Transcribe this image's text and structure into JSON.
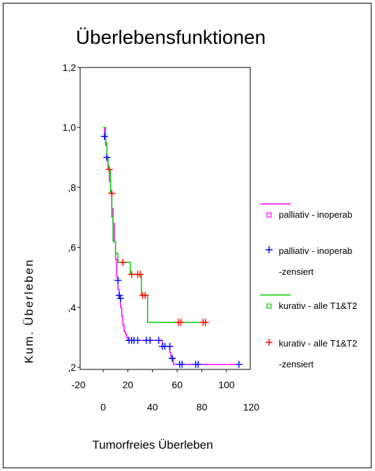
{
  "chart_data": {
    "type": "line",
    "title": "Überlebensfunktionen",
    "xlabel": "Tumorfreies Überleben",
    "ylabel": "Kum. Überleben",
    "xlim": [
      -20,
      120
    ],
    "ylim": [
      0.2,
      1.2
    ],
    "y_ticks": [
      {
        "value": 0.2,
        "label": ",2"
      },
      {
        "value": 0.4,
        "label": ",4"
      },
      {
        "value": 0.6,
        "label": ",6"
      },
      {
        "value": 0.8,
        "label": ",8"
      },
      {
        "value": 1.0,
        "label": "1,0"
      },
      {
        "value": 1.2,
        "label": "1,2"
      }
    ],
    "x_ticks_upper": [
      -20,
      20,
      60,
      100
    ],
    "x_ticks_lower": [
      0,
      40,
      80,
      120
    ],
    "grid": false,
    "legend_placement": "right",
    "colors": {
      "palliativ": "#ff00ff",
      "palliativ_censored": "#0000ff",
      "kurativ": "#00cc00",
      "kurativ_censored": "#ff0000"
    },
    "series": [
      {
        "name": "palliativ - inoperab",
        "type": "step",
        "points": [
          [
            0,
            1.0
          ],
          [
            1,
            0.97
          ],
          [
            2,
            0.94
          ],
          [
            3,
            0.9
          ],
          [
            4,
            0.86
          ],
          [
            5,
            0.82
          ],
          [
            6,
            0.78
          ],
          [
            7,
            0.73
          ],
          [
            8,
            0.68
          ],
          [
            9,
            0.62
          ],
          [
            10,
            0.56
          ],
          [
            11,
            0.5
          ],
          [
            12,
            0.46
          ],
          [
            13,
            0.43
          ],
          [
            14,
            0.4
          ],
          [
            15,
            0.37
          ],
          [
            16,
            0.34
          ],
          [
            17,
            0.32
          ],
          [
            18,
            0.31
          ],
          [
            19,
            0.3
          ],
          [
            20,
            0.29
          ],
          [
            47,
            0.29
          ],
          [
            48,
            0.27
          ],
          [
            52,
            0.27
          ],
          [
            54,
            0.25
          ],
          [
            55,
            0.23
          ],
          [
            57,
            0.21
          ],
          [
            110,
            0.21
          ]
        ]
      },
      {
        "name": "palliativ - inoperab -zensiert",
        "type": "censor",
        "points": [
          [
            1,
            0.97
          ],
          [
            3,
            0.9
          ],
          [
            12,
            0.49
          ],
          [
            13,
            0.44
          ],
          [
            14,
            0.43
          ],
          [
            21,
            0.29
          ],
          [
            23,
            0.29
          ],
          [
            25,
            0.29
          ],
          [
            28,
            0.29
          ],
          [
            35,
            0.29
          ],
          [
            38,
            0.29
          ],
          [
            45,
            0.29
          ],
          [
            48,
            0.27
          ],
          [
            50,
            0.27
          ],
          [
            54,
            0.27
          ],
          [
            56,
            0.23
          ],
          [
            62,
            0.21
          ],
          [
            64,
            0.21
          ],
          [
            75,
            0.21
          ],
          [
            77,
            0.21
          ],
          [
            110,
            0.21
          ]
        ]
      },
      {
        "name": "kurativ - alle T1&T2",
        "type": "step",
        "points": [
          [
            0,
            1.0
          ],
          [
            2,
            0.95
          ],
          [
            3,
            0.9
          ],
          [
            4,
            0.86
          ],
          [
            6,
            0.78
          ],
          [
            7,
            0.7
          ],
          [
            8,
            0.62
          ],
          [
            10,
            0.58
          ],
          [
            12,
            0.55
          ],
          [
            22,
            0.55
          ],
          [
            22,
            0.51
          ],
          [
            31,
            0.51
          ],
          [
            31,
            0.44
          ],
          [
            36,
            0.44
          ],
          [
            36,
            0.35
          ],
          [
            82,
            0.35
          ]
        ]
      },
      {
        "name": "kurativ - alle T1&T2 -zensiert",
        "type": "censor",
        "points": [
          [
            5,
            0.86
          ],
          [
            7,
            0.78
          ],
          [
            16,
            0.55
          ],
          [
            23,
            0.51
          ],
          [
            28,
            0.51
          ],
          [
            30,
            0.51
          ],
          [
            32,
            0.44
          ],
          [
            34,
            0.44
          ],
          [
            61,
            0.35
          ],
          [
            63,
            0.35
          ],
          [
            81,
            0.35
          ],
          [
            83,
            0.35
          ]
        ]
      }
    ],
    "legend": [
      {
        "label": "palliativ - inoperab",
        "symbol": "square-line",
        "color": "#ff00ff"
      },
      {
        "label": "palliativ - inoperab",
        "label2": "-zensiert",
        "symbol": "plus",
        "color": "#0000ff"
      },
      {
        "label": "kurativ - alle T1&T2",
        "symbol": "square-line",
        "color": "#00cc00"
      },
      {
        "label": "kurativ - alle T1&T2",
        "label2": "-zensiert",
        "symbol": "plus",
        "color": "#ff0000"
      }
    ]
  }
}
